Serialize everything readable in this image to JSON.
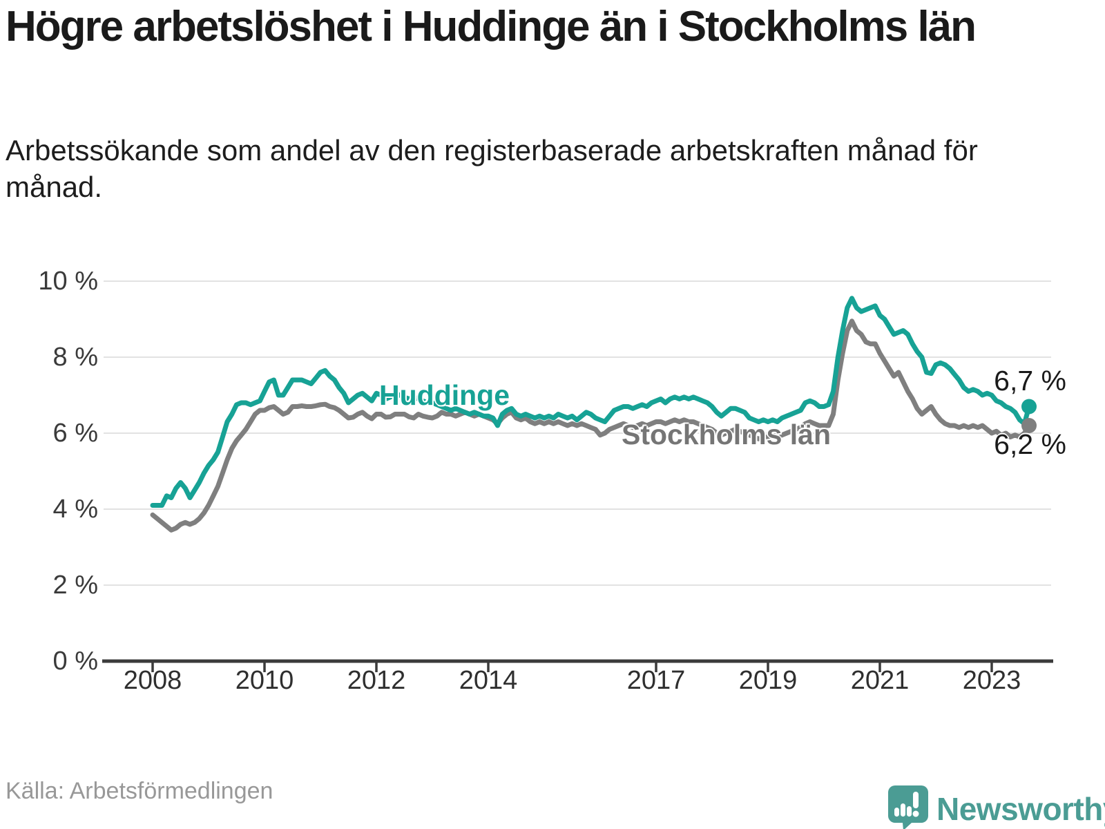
{
  "header": {
    "title": "Högre arbetslöshet i Huddinge än i Stockholms län",
    "subtitle": "Arbetssökande som andel av den registerbaserade arbetskraften månad för månad."
  },
  "footer": {
    "source": "Källa: Arbetsförmedlingen",
    "brand": "Newsworthy",
    "logo_icon": "newsworthy-speech-bubble-chart-icon",
    "brand_color": "#4b9c94"
  },
  "chart_data": {
    "type": "line",
    "unit": "%",
    "grid": "horizontal",
    "ylim": [
      0,
      10
    ],
    "x_start_year": 2008,
    "x_start_month": 1,
    "x_end_year": 2023,
    "x_end_month": 9,
    "months_per_point": 1,
    "x_ticks": [
      2008,
      2010,
      2012,
      2014,
      2017,
      2019,
      2021,
      2023
    ],
    "y_ticks": [
      {
        "value": 0,
        "label": "0 %"
      },
      {
        "value": 2,
        "label": "2 %"
      },
      {
        "value": 4,
        "label": "4 %"
      },
      {
        "value": 6,
        "label": "6 %"
      },
      {
        "value": 8,
        "label": "8 %"
      },
      {
        "value": 10,
        "label": "10 %"
      }
    ],
    "series": [
      {
        "name": "Huddinge",
        "color": "#17a295",
        "end_label": "6,7 %",
        "end_value": 6.7,
        "values": [
          4.1,
          4.1,
          4.1,
          4.35,
          4.3,
          4.55,
          4.7,
          4.55,
          4.3,
          4.5,
          4.7,
          4.95,
          5.15,
          5.3,
          5.5,
          5.9,
          6.3,
          6.5,
          6.75,
          6.8,
          6.8,
          6.75,
          6.8,
          6.85,
          7.1,
          7.35,
          7.4,
          7.0,
          7.0,
          7.2,
          7.4,
          7.4,
          7.4,
          7.35,
          7.3,
          7.45,
          7.6,
          7.65,
          7.5,
          7.4,
          7.2,
          7.05,
          6.8,
          6.9,
          7.0,
          7.05,
          6.95,
          6.85,
          7.05,
          7.0,
          6.9,
          6.95,
          7.05,
          7.0,
          6.95,
          6.9,
          6.95,
          6.9,
          6.85,
          6.8,
          6.8,
          6.75,
          6.7,
          6.65,
          6.6,
          6.65,
          6.6,
          6.55,
          6.5,
          6.55,
          6.5,
          6.45,
          6.45,
          6.4,
          6.2,
          6.5,
          6.6,
          6.65,
          6.5,
          6.45,
          6.5,
          6.45,
          6.4,
          6.45,
          6.4,
          6.45,
          6.4,
          6.5,
          6.45,
          6.4,
          6.45,
          6.35,
          6.45,
          6.55,
          6.5,
          6.4,
          6.35,
          6.3,
          6.45,
          6.6,
          6.65,
          6.7,
          6.7,
          6.65,
          6.7,
          6.75,
          6.7,
          6.8,
          6.85,
          6.9,
          6.8,
          6.9,
          6.95,
          6.9,
          6.95,
          6.9,
          6.95,
          6.9,
          6.85,
          6.8,
          6.7,
          6.55,
          6.45,
          6.55,
          6.65,
          6.65,
          6.6,
          6.55,
          6.4,
          6.35,
          6.3,
          6.35,
          6.3,
          6.35,
          6.3,
          6.4,
          6.45,
          6.5,
          6.55,
          6.6,
          6.8,
          6.85,
          6.8,
          6.7,
          6.7,
          6.75,
          7.1,
          8.0,
          8.7,
          9.3,
          9.55,
          9.3,
          9.2,
          9.25,
          9.3,
          9.35,
          9.1,
          9.0,
          8.8,
          8.6,
          8.65,
          8.7,
          8.6,
          8.35,
          8.15,
          8.0,
          7.6,
          7.57,
          7.8,
          7.85,
          7.8,
          7.7,
          7.55,
          7.4,
          7.2,
          7.1,
          7.15,
          7.1,
          7.0,
          7.05,
          7.0,
          6.85,
          6.8,
          6.7,
          6.65,
          6.55,
          6.35,
          6.25,
          6.7
        ]
      },
      {
        "name": "Stockholms län",
        "color": "#7f7f7f",
        "end_label": "6,2 %",
        "end_value": 6.2,
        "values": [
          3.85,
          3.75,
          3.65,
          3.55,
          3.45,
          3.5,
          3.6,
          3.65,
          3.6,
          3.65,
          3.75,
          3.9,
          4.1,
          4.35,
          4.6,
          4.95,
          5.3,
          5.6,
          5.8,
          5.95,
          6.1,
          6.3,
          6.5,
          6.6,
          6.6,
          6.67,
          6.7,
          6.6,
          6.5,
          6.55,
          6.7,
          6.7,
          6.72,
          6.7,
          6.7,
          6.72,
          6.75,
          6.76,
          6.7,
          6.67,
          6.6,
          6.5,
          6.4,
          6.42,
          6.5,
          6.55,
          6.45,
          6.38,
          6.5,
          6.5,
          6.42,
          6.43,
          6.5,
          6.5,
          6.5,
          6.43,
          6.4,
          6.5,
          6.45,
          6.42,
          6.4,
          6.45,
          6.55,
          6.5,
          6.5,
          6.45,
          6.5,
          6.55,
          6.5,
          6.45,
          6.5,
          6.45,
          6.4,
          6.35,
          6.25,
          6.4,
          6.5,
          6.55,
          6.4,
          6.35,
          6.4,
          6.3,
          6.25,
          6.3,
          6.25,
          6.3,
          6.25,
          6.3,
          6.25,
          6.2,
          6.25,
          6.2,
          6.25,
          6.2,
          6.15,
          6.1,
          5.95,
          6.0,
          6.1,
          6.15,
          6.2,
          6.25,
          6.2,
          6.15,
          6.2,
          6.25,
          6.2,
          6.25,
          6.3,
          6.3,
          6.25,
          6.3,
          6.35,
          6.3,
          6.35,
          6.3,
          6.3,
          6.25,
          6.2,
          6.15,
          6.1,
          6.0,
          5.95,
          6.0,
          6.05,
          6.1,
          6.05,
          6.0,
          5.95,
          5.9,
          5.85,
          5.9,
          5.9,
          5.95,
          5.9,
          5.95,
          6.0,
          6.05,
          6.1,
          6.15,
          6.25,
          6.3,
          6.25,
          6.2,
          6.2,
          6.2,
          6.5,
          7.4,
          8.1,
          8.7,
          8.95,
          8.7,
          8.6,
          8.4,
          8.35,
          8.35,
          8.1,
          7.9,
          7.7,
          7.5,
          7.6,
          7.35,
          7.1,
          6.9,
          6.65,
          6.5,
          6.6,
          6.7,
          6.5,
          6.35,
          6.25,
          6.2,
          6.2,
          6.15,
          6.2,
          6.15,
          6.2,
          6.15,
          6.2,
          6.1,
          6.0,
          6.05,
          5.95,
          6.0,
          5.9,
          5.95,
          5.9,
          6.0,
          6.2
        ]
      }
    ]
  }
}
